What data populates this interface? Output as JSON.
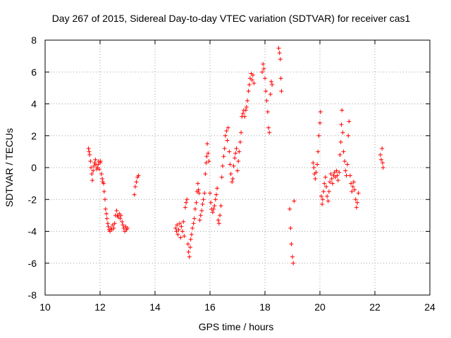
{
  "chart_data": {
    "type": "scatter",
    "title": "Day 267 of 2015, Sidereal Day-to-day VTEC variation (SDTVAR) for receiver cas1",
    "xlabel": "GPS time / hours",
    "ylabel": "SDTVAR / TECUs",
    "xlim": [
      10,
      24
    ],
    "ylim": [
      -8,
      8
    ],
    "xticks": [
      10,
      12,
      14,
      16,
      18,
      20,
      22,
      24
    ],
    "yticks": [
      -8,
      -6,
      -4,
      -2,
      0,
      2,
      4,
      6,
      8
    ],
    "xtick_labels": [
      "10",
      "12",
      "14",
      "16",
      "18",
      "20",
      "22",
      "24"
    ],
    "ytick_labels": [
      "-8",
      "-6",
      "-4",
      "-2",
      "0",
      "2",
      "4",
      "6",
      "8"
    ],
    "grid": true,
    "marker": "+",
    "color": "#ff0000",
    "series": [
      {
        "name": "cas1",
        "points": [
          [
            11.58,
            1.2
          ],
          [
            11.6,
            1.0
          ],
          [
            11.62,
            0.8
          ],
          [
            11.65,
            0.4
          ],
          [
            11.67,
            0.0
          ],
          [
            11.7,
            -0.4
          ],
          [
            11.72,
            -0.8
          ],
          [
            11.75,
            -0.2
          ],
          [
            11.78,
            0.1
          ],
          [
            11.8,
            0.3
          ],
          [
            11.83,
            0.5
          ],
          [
            11.85,
            0.2
          ],
          [
            11.88,
            -0.1
          ],
          [
            11.9,
            0.0
          ],
          [
            11.93,
            0.2
          ],
          [
            11.95,
            0.4
          ],
          [
            11.97,
            -0.1
          ],
          [
            12.0,
            0.3
          ],
          [
            12.02,
            0.4
          ],
          [
            12.05,
            -0.4
          ],
          [
            12.08,
            -0.7
          ],
          [
            12.1,
            -0.9
          ],
          [
            12.13,
            -1.0
          ],
          [
            12.15,
            -1.5
          ],
          [
            12.18,
            -2.0
          ],
          [
            12.2,
            -2.6
          ],
          [
            12.23,
            -2.9
          ],
          [
            12.25,
            -3.2
          ],
          [
            12.28,
            -3.5
          ],
          [
            12.3,
            -3.7
          ],
          [
            12.33,
            -3.9
          ],
          [
            12.36,
            -4.0
          ],
          [
            12.4,
            -3.8
          ],
          [
            12.43,
            -3.9
          ],
          [
            12.46,
            -3.6
          ],
          [
            12.5,
            -3.8
          ],
          [
            12.53,
            -3.5
          ],
          [
            12.56,
            -3.0
          ],
          [
            12.6,
            -2.7
          ],
          [
            12.63,
            -3.0
          ],
          [
            12.66,
            -3.1
          ],
          [
            12.7,
            -2.9
          ],
          [
            12.73,
            -3.2
          ],
          [
            12.76,
            -3.0
          ],
          [
            12.8,
            -3.4
          ],
          [
            12.83,
            -3.6
          ],
          [
            12.86,
            -3.8
          ],
          [
            12.9,
            -4.0
          ],
          [
            12.93,
            -3.7
          ],
          [
            12.96,
            -3.9
          ],
          [
            13.0,
            -3.8
          ],
          [
            13.25,
            -1.7
          ],
          [
            13.28,
            -1.2
          ],
          [
            13.32,
            -0.9
          ],
          [
            13.36,
            -0.6
          ],
          [
            13.4,
            -0.5
          ],
          [
            14.75,
            -3.8
          ],
          [
            14.78,
            -4.0
          ],
          [
            14.8,
            -3.6
          ],
          [
            14.83,
            -4.2
          ],
          [
            14.86,
            -3.9
          ],
          [
            14.9,
            -3.5
          ],
          [
            14.93,
            -4.4
          ],
          [
            14.96,
            -3.7
          ],
          [
            15.0,
            -4.0
          ],
          [
            15.03,
            -3.4
          ],
          [
            15.06,
            -4.3
          ],
          [
            15.1,
            -2.5
          ],
          [
            15.13,
            -2.2
          ],
          [
            15.16,
            -2.0
          ],
          [
            15.2,
            -4.8
          ],
          [
            15.22,
            -5.3
          ],
          [
            15.25,
            -5.6
          ],
          [
            15.28,
            -5.0
          ],
          [
            15.3,
            -4.5
          ],
          [
            15.33,
            -4.2
          ],
          [
            15.36,
            -3.8
          ],
          [
            15.4,
            -3.5
          ],
          [
            15.43,
            -3.2
          ],
          [
            15.46,
            -2.6
          ],
          [
            15.5,
            -2.2
          ],
          [
            15.53,
            -1.5
          ],
          [
            15.56,
            -1.0
          ],
          [
            15.58,
            -1.4
          ],
          [
            15.6,
            -1.6
          ],
          [
            15.63,
            -3.3
          ],
          [
            15.66,
            -3.0
          ],
          [
            15.7,
            -2.7
          ],
          [
            15.73,
            -2.3
          ],
          [
            15.76,
            -2.0
          ],
          [
            15.8,
            -1.6
          ],
          [
            15.83,
            -0.4
          ],
          [
            15.86,
            0.3
          ],
          [
            15.88,
            0.7
          ],
          [
            15.9,
            1.5
          ],
          [
            15.93,
            0.9
          ],
          [
            15.96,
            0.4
          ],
          [
            16.0,
            -1.6
          ],
          [
            16.03,
            -2.2
          ],
          [
            16.06,
            -2.6
          ],
          [
            16.1,
            -2.8
          ],
          [
            16.13,
            -2.6
          ],
          [
            16.16,
            -2.4
          ],
          [
            16.2,
            -2.0
          ],
          [
            16.23,
            -1.7
          ],
          [
            16.26,
            -1.3
          ],
          [
            16.3,
            -3.3
          ],
          [
            16.33,
            -3.5
          ],
          [
            16.36,
            -3.0
          ],
          [
            16.4,
            -2.4
          ],
          [
            16.43,
            -0.6
          ],
          [
            16.46,
            0.1
          ],
          [
            16.5,
            0.7
          ],
          [
            16.53,
            1.2
          ],
          [
            16.56,
            2.0
          ],
          [
            16.6,
            2.3
          ],
          [
            16.63,
            1.7
          ],
          [
            16.66,
            2.5
          ],
          [
            16.7,
            1.0
          ],
          [
            16.73,
            0.2
          ],
          [
            16.76,
            -0.4
          ],
          [
            16.8,
            -0.9
          ],
          [
            16.83,
            -0.7
          ],
          [
            16.86,
            0.1
          ],
          [
            16.9,
            0.6
          ],
          [
            16.93,
            0.9
          ],
          [
            16.96,
            1.2
          ],
          [
            17.0,
            -0.2
          ],
          [
            17.03,
            0.4
          ],
          [
            17.06,
            1.0
          ],
          [
            17.1,
            1.6
          ],
          [
            17.13,
            2.2
          ],
          [
            17.16,
            3.2
          ],
          [
            17.2,
            3.4
          ],
          [
            17.23,
            3.6
          ],
          [
            17.26,
            3.2
          ],
          [
            17.3,
            3.6
          ],
          [
            17.33,
            3.8
          ],
          [
            17.36,
            4.2
          ],
          [
            17.4,
            4.8
          ],
          [
            17.43,
            5.2
          ],
          [
            17.46,
            5.6
          ],
          [
            17.5,
            5.9
          ],
          [
            17.53,
            5.5
          ],
          [
            17.56,
            5.8
          ],
          [
            17.6,
            5.3
          ],
          [
            17.9,
            6.0
          ],
          [
            17.93,
            6.5
          ],
          [
            17.96,
            6.2
          ],
          [
            18.0,
            5.6
          ],
          [
            18.03,
            4.8
          ],
          [
            18.06,
            4.2
          ],
          [
            18.1,
            3.5
          ],
          [
            18.13,
            2.5
          ],
          [
            18.16,
            2.2
          ],
          [
            18.2,
            4.6
          ],
          [
            18.23,
            5.4
          ],
          [
            18.26,
            5.2
          ],
          [
            18.5,
            7.5
          ],
          [
            18.53,
            7.2
          ],
          [
            18.56,
            6.8
          ],
          [
            18.58,
            5.6
          ],
          [
            18.6,
            4.8
          ],
          [
            18.9,
            -2.6
          ],
          [
            18.93,
            -3.8
          ],
          [
            18.96,
            -4.8
          ],
          [
            19.0,
            -5.6
          ],
          [
            19.03,
            -6.0
          ],
          [
            19.06,
            -2.1
          ],
          [
            19.75,
            0.3
          ],
          [
            19.78,
            0.0
          ],
          [
            19.8,
            -0.4
          ],
          [
            19.83,
            -0.7
          ],
          [
            19.86,
            -0.3
          ],
          [
            19.9,
            0.2
          ],
          [
            19.93,
            1.0
          ],
          [
            19.96,
            2.0
          ],
          [
            20.0,
            2.8
          ],
          [
            20.02,
            3.5
          ],
          [
            20.05,
            -1.8
          ],
          [
            20.08,
            -2.3
          ],
          [
            20.1,
            -2.0
          ],
          [
            20.13,
            -1.5
          ],
          [
            20.16,
            -1.0
          ],
          [
            20.2,
            -0.6
          ],
          [
            20.23,
            -1.2
          ],
          [
            20.26,
            -1.8
          ],
          [
            20.3,
            -2.1
          ],
          [
            20.33,
            -1.5
          ],
          [
            20.36,
            -0.9
          ],
          [
            20.4,
            -0.4
          ],
          [
            20.43,
            -0.7
          ],
          [
            20.46,
            -1.0
          ],
          [
            20.5,
            -0.5
          ],
          [
            20.53,
            -0.3
          ],
          [
            20.56,
            -0.6
          ],
          [
            20.6,
            -0.2
          ],
          [
            20.63,
            -0.5
          ],
          [
            20.66,
            -0.8
          ],
          [
            20.7,
            -0.3
          ],
          [
            20.73,
            0.8
          ],
          [
            20.76,
            1.6
          ],
          [
            20.78,
            2.7
          ],
          [
            20.8,
            3.6
          ],
          [
            20.83,
            2.2
          ],
          [
            20.86,
            1.0
          ],
          [
            20.9,
            0.4
          ],
          [
            20.93,
            -0.2
          ],
          [
            20.96,
            -0.5
          ],
          [
            21.0,
            0.2
          ],
          [
            21.03,
            2.0
          ],
          [
            21.06,
            2.9
          ],
          [
            21.1,
            -0.5
          ],
          [
            21.13,
            -1.0
          ],
          [
            21.16,
            -1.5
          ],
          [
            21.2,
            -1.2
          ],
          [
            21.23,
            -0.9
          ],
          [
            21.26,
            -1.4
          ],
          [
            21.3,
            -2.0
          ],
          [
            21.33,
            -2.5
          ],
          [
            21.36,
            -2.2
          ],
          [
            21.4,
            -1.6
          ],
          [
            22.2,
            0.8
          ],
          [
            22.23,
            0.5
          ],
          [
            22.26,
            1.2
          ],
          [
            22.28,
            0.3
          ],
          [
            22.3,
            0.0
          ]
        ]
      }
    ]
  }
}
